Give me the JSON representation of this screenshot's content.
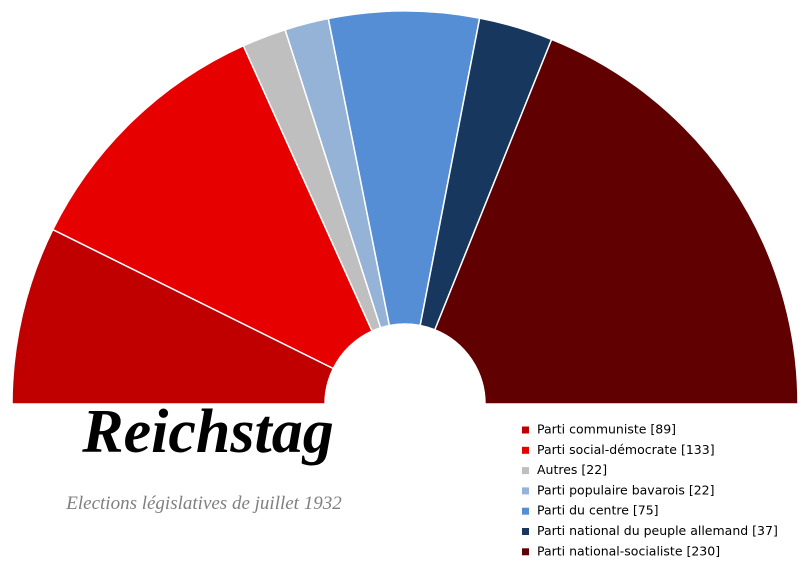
{
  "chart_data": {
    "type": "half-donut",
    "title": "Reichstag",
    "subtitle": "Elections législatives de juillet 1932",
    "categories": [
      "Parti communiste [89]",
      "Parti social-démocrate [133]",
      "Autres [22]",
      "Parti populaire bavarois [22]",
      "Parti du centre [75]",
      "Parti national du peuple allemand [37]",
      "Parti national-socialiste [230]"
    ],
    "values": [
      89,
      133,
      22,
      22,
      75,
      37,
      230
    ],
    "colors": [
      "#c00000",
      "#e60000",
      "#bfbfbf",
      "#95b3d7",
      "#558ed5",
      "#17375e",
      "#600000"
    ]
  }
}
